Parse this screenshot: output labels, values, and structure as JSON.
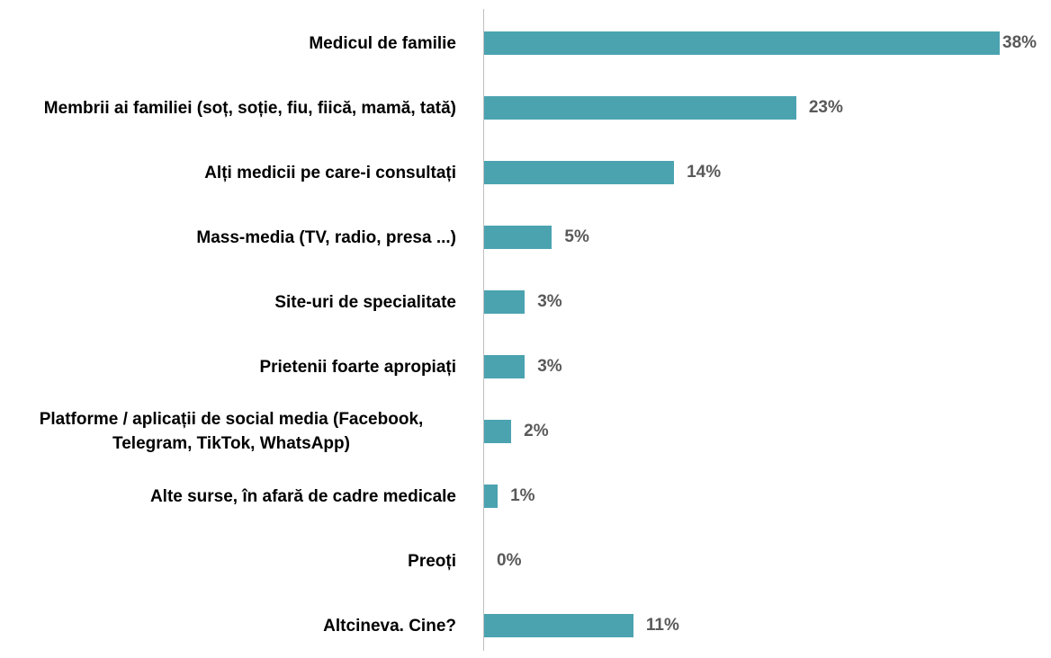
{
  "chart_data": {
    "type": "bar",
    "orientation": "horizontal",
    "categories": [
      "Medicul de familie",
      "Membrii ai familiei (soț, soție, fiu, fiică, mamă, tată)",
      "Alți medicii pe care-i consultați",
      "Mass-media (TV, radio, presa ...)",
      "Site-uri de specialitate",
      "Prietenii foarte apropiați",
      "Platforme / aplicații de social media (Facebook, Telegram, TikTok, WhatsApp)",
      "Alte surse, în afară de cadre medicale",
      "Preoți",
      "Altcineva. Cine?"
    ],
    "values": [
      38,
      23,
      14,
      5,
      3,
      3,
      2,
      1,
      0,
      11
    ],
    "value_labels": [
      "38%",
      "23%",
      "14%",
      "5%",
      "3%",
      "3%",
      "2%",
      "1%",
      "0%",
      "11%"
    ],
    "color": "#4ba3b0"
  }
}
